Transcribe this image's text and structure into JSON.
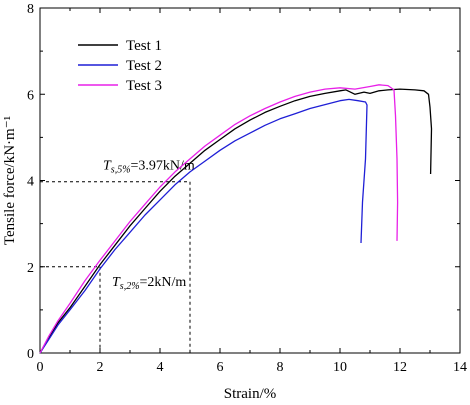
{
  "chart_data": {
    "type": "line",
    "title": "",
    "xlabel": "Strain/%",
    "ylabel": "Tensile force/kN·m⁻¹",
    "xlim": [
      0,
      14
    ],
    "ylim": [
      0,
      8
    ],
    "xticks": [
      "0",
      "2",
      "4",
      "6",
      "8",
      "10",
      "12",
      "14"
    ],
    "yticks": [
      "0",
      "2",
      "4",
      "6",
      "8"
    ],
    "grid": false,
    "legend_position": "top-left",
    "series": [
      {
        "name": "Test 1",
        "color": "#000000",
        "x": [
          0,
          0.3,
          0.6,
          1.0,
          1.5,
          2.0,
          2.5,
          3.0,
          3.5,
          4.0,
          4.5,
          5.0,
          5.5,
          6.0,
          6.5,
          7.0,
          7.5,
          8.0,
          8.5,
          9.0,
          9.5,
          10.0,
          10.2,
          10.5,
          10.8,
          11.0,
          11.3,
          11.6,
          12.0,
          12.5,
          12.8,
          12.95,
          13.0,
          13.05,
          13.02
        ],
        "y": [
          0,
          0.35,
          0.7,
          1.05,
          1.55,
          2.05,
          2.5,
          2.95,
          3.35,
          3.75,
          4.1,
          4.4,
          4.7,
          4.95,
          5.2,
          5.4,
          5.58,
          5.72,
          5.85,
          5.95,
          6.02,
          6.08,
          6.1,
          6.0,
          6.05,
          6.02,
          6.08,
          6.1,
          6.12,
          6.1,
          6.08,
          6.0,
          5.7,
          5.2,
          4.15
        ]
      },
      {
        "name": "Test 2",
        "color": "#1f1fd6",
        "x": [
          0,
          0.3,
          0.6,
          1.0,
          1.5,
          2.0,
          2.5,
          3.0,
          3.5,
          4.0,
          4.5,
          5.0,
          5.5,
          6.0,
          6.5,
          7.0,
          7.5,
          8.0,
          8.5,
          9.0,
          9.5,
          10.0,
          10.3,
          10.6,
          10.85,
          10.9,
          10.85,
          10.75,
          10.7
        ],
        "y": [
          0,
          0.32,
          0.65,
          1.0,
          1.45,
          1.95,
          2.4,
          2.8,
          3.2,
          3.55,
          3.9,
          4.2,
          4.45,
          4.7,
          4.92,
          5.1,
          5.28,
          5.43,
          5.55,
          5.67,
          5.76,
          5.85,
          5.88,
          5.85,
          5.82,
          5.75,
          4.5,
          3.5,
          2.55
        ]
      },
      {
        "name": "Test 3",
        "color": "#e820e8",
        "x": [
          0,
          0.3,
          0.6,
          1.0,
          1.5,
          2.0,
          2.5,
          3.0,
          3.5,
          4.0,
          4.5,
          5.0,
          5.5,
          6.0,
          6.5,
          7.0,
          7.5,
          8.0,
          8.5,
          9.0,
          9.5,
          10.0,
          10.5,
          11.0,
          11.3,
          11.6,
          11.8,
          11.85,
          11.9,
          11.92,
          11.9
        ],
        "y": [
          0,
          0.4,
          0.75,
          1.15,
          1.68,
          2.15,
          2.6,
          3.05,
          3.45,
          3.85,
          4.2,
          4.5,
          4.8,
          5.05,
          5.3,
          5.5,
          5.67,
          5.82,
          5.95,
          6.05,
          6.12,
          6.15,
          6.12,
          6.18,
          6.22,
          6.2,
          6.1,
          5.5,
          4.5,
          3.5,
          2.6
        ]
      }
    ],
    "annotations": [
      {
        "label_main": "T",
        "label_sub": "s,5%",
        "label_value": "=3.97kN/m",
        "x": 5,
        "y": 3.97
      },
      {
        "label_main": "T",
        "label_sub": "s,2%",
        "label_value": "=2kN/m",
        "x": 2,
        "y": 2
      }
    ]
  }
}
